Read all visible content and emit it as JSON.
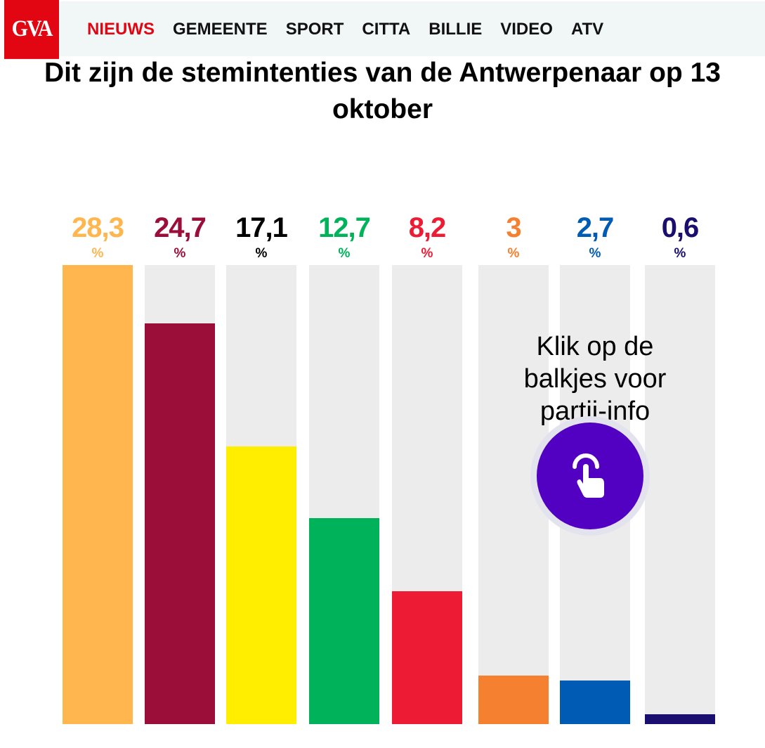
{
  "header": {
    "logo": "GVA",
    "nav": [
      "NIEUWS",
      "GEMEENTE",
      "SPORT",
      "CITTA",
      "BILLIE",
      "VIDEO",
      "ATV"
    ],
    "active": "NIEUWS",
    "brand_color": "#e20613"
  },
  "hint": {
    "text": "Klik op de balkjes voor partij-info",
    "icon": "tap-hand-icon"
  },
  "chart_data": {
    "type": "bar",
    "title": "Dit zijn de stemintenties van de Antwerpenaar op 13 oktober",
    "unit": "%",
    "labels": [
      "28,3",
      "24,7",
      "17,1",
      "12,7",
      "8,2",
      "3",
      "2,7",
      "0,6"
    ],
    "values": [
      28.3,
      24.7,
      17.1,
      12.7,
      8.2,
      3,
      2.7,
      0.6
    ],
    "colors": [
      "#ffb64f",
      "#9b0e3a",
      "#ffee00",
      "#00b259",
      "#ee1b34",
      "#f58030",
      "#005bb5",
      "#1a0f6e"
    ],
    "label_colors": [
      "#ffb64f",
      "#9b0e3a",
      "#000000",
      "#00b259",
      "#ee1b34",
      "#f58030",
      "#005bb5",
      "#1a0f6e"
    ],
    "ylim": [
      0,
      28.3
    ]
  }
}
